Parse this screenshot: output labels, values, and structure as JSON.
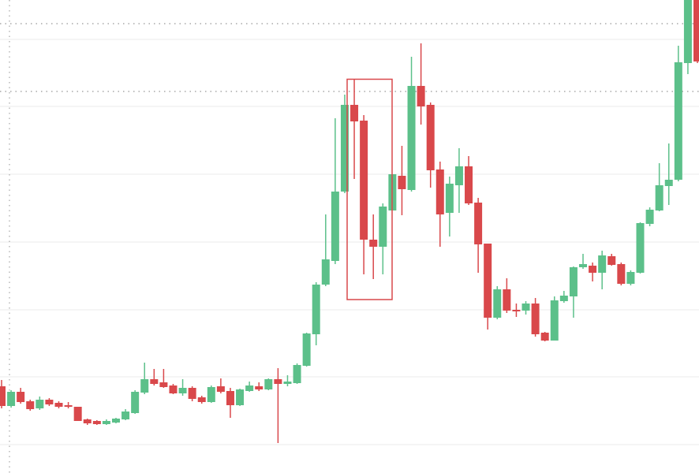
{
  "chart_data": {
    "type": "candlestick",
    "up_color": "#5cc08a",
    "down_color": "#d9484b",
    "ylim": [
      0,
      600
    ],
    "gridlines": [
      550,
      465,
      379,
      293,
      207,
      122,
      36
    ],
    "reference_lines": [
      570,
      484
    ],
    "open": [
      110,
      85,
      103,
      91,
      82,
      93,
      89,
      86,
      84,
      68,
      66,
      62,
      64,
      68,
      76,
      102,
      119,
      115,
      111,
      101,
      108,
      96,
      90,
      110,
      104,
      86,
      104,
      110,
      106,
      119,
      113,
      114,
      136,
      176,
      239,
      269,
      357,
      467,
      447,
      296,
      287,
      333,
      377,
      359,
      491,
      467,
      385,
      330,
      365,
      389,
      343,
      291,
      197,
      233,
      207,
      206,
      215,
      178,
      168,
      218,
      224,
      261,
      263,
      254,
      275,
      265,
      240,
      254,
      316,
      333,
      364,
      372,
      520,
      600
    ],
    "high": [
      118,
      105,
      108,
      93,
      97,
      95,
      91,
      90,
      84,
      69,
      67,
      68,
      70,
      81,
      105,
      140,
      132,
      132,
      113,
      119,
      110,
      98,
      111,
      120,
      108,
      107,
      116,
      115,
      120,
      133,
      124,
      139,
      178,
      242,
      328,
      450,
      480,
      500,
      454,
      328,
      342,
      379,
      415,
      528,
      545,
      470,
      395,
      376,
      412,
      402,
      349,
      291,
      237,
      247,
      215,
      218,
      222,
      179,
      224,
      231,
      262,
      278,
      267,
      282,
      278,
      267,
      257,
      318,
      337,
      393,
      418,
      542,
      600,
      600
    ],
    "low": [
      82,
      83,
      88,
      79,
      80,
      85,
      82,
      82,
      66,
      61,
      61,
      61,
      63,
      67,
      75,
      100,
      111,
      108,
      100,
      98,
      91,
      88,
      89,
      101,
      70,
      85,
      103,
      104,
      105,
      38,
      110,
      113,
      135,
      162,
      237,
      265,
      355,
      373,
      252,
      246,
      252,
      333,
      327,
      357,
      442,
      362,
      287,
      300,
      330,
      340,
      254,
      182,
      195,
      203,
      198,
      201,
      173,
      167,
      168,
      216,
      197,
      259,
      243,
      233,
      263,
      238,
      238,
      253,
      313,
      332,
      340,
      370,
      506,
      520
    ],
    "close": [
      85,
      103,
      90,
      81,
      93,
      87,
      84,
      84,
      66,
      63,
      62,
      66,
      69,
      78,
      103,
      119,
      113,
      109,
      101,
      108,
      94,
      90,
      109,
      103,
      86,
      106,
      111,
      106,
      119,
      113,
      116,
      137,
      177,
      239,
      271,
      357,
      467,
      446,
      296,
      287,
      338,
      379,
      360,
      491,
      465,
      384,
      328,
      367,
      389,
      342,
      290,
      197,
      233,
      206,
      205,
      215,
      176,
      168,
      219,
      225,
      261,
      265,
      254,
      276,
      264,
      240,
      255,
      317,
      334,
      365,
      372,
      521,
      600,
      522
    ]
  }
}
